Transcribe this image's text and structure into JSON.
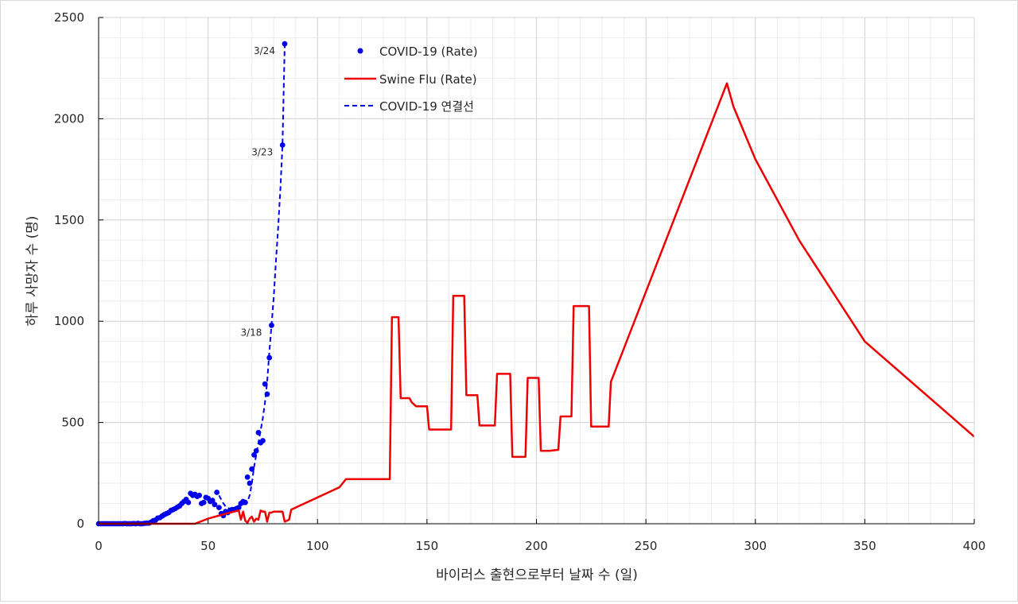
{
  "chart_data": {
    "type": "scatter",
    "title": "",
    "xlabel": "바이러스 출현으로부터 날짜 수 (일)",
    "ylabel": "하루 사망자 수 (명)",
    "xlim": [
      0,
      400
    ],
    "ylim": [
      0,
      2500
    ],
    "xticks": [
      0,
      50,
      100,
      150,
      200,
      250,
      300,
      350,
      400
    ],
    "yticks": [
      0,
      500,
      1000,
      1500,
      2000,
      2500
    ],
    "minor_x_step": 10,
    "minor_y_step": 100,
    "grid": true,
    "legend_position": "top-center",
    "colors": {
      "covid": "#0000ee",
      "swine": "#ee0000",
      "grid_major": "#d4d4d4",
      "grid_minor": "#ededed",
      "axis": "#000000"
    },
    "series": [
      {
        "name": "COVID-19 (Rate)",
        "kind": "points",
        "color": "#0000ee",
        "x": [
          0,
          1,
          2,
          3,
          4,
          5,
          6,
          7,
          8,
          9,
          10,
          11,
          12,
          13,
          14,
          15,
          16,
          17,
          18,
          19,
          20,
          21,
          22,
          23,
          24,
          25,
          26,
          27,
          28,
          29,
          30,
          31,
          32,
          33,
          34,
          35,
          36,
          37,
          38,
          39,
          40,
          41,
          42,
          43,
          44,
          45,
          46,
          47,
          48,
          49,
          50,
          51,
          52,
          53,
          54,
          55,
          56,
          57,
          58,
          59,
          60,
          61,
          62,
          63,
          64,
          65,
          66,
          67,
          68,
          69,
          70,
          71,
          72,
          73,
          74,
          75,
          76,
          77,
          78,
          79,
          84,
          85
        ],
        "y": [
          0,
          0,
          0,
          0,
          0,
          0,
          0,
          0,
          0,
          0,
          0,
          0,
          1,
          0,
          0,
          0,
          1,
          0,
          2,
          0,
          0,
          2,
          3,
          3,
          8,
          15,
          18,
          28,
          30,
          38,
          45,
          50,
          55,
          65,
          70,
          75,
          82,
          88,
          100,
          110,
          120,
          105,
          150,
          140,
          145,
          135,
          140,
          100,
          105,
          130,
          125,
          110,
          115,
          95,
          155,
          80,
          50,
          40,
          60,
          55,
          65,
          70,
          70,
          75,
          80,
          100,
          110,
          105,
          230,
          200,
          270,
          340,
          360,
          450,
          400,
          410,
          690,
          640,
          820,
          980,
          1870,
          2370
        ]
      },
      {
        "name": "Swine Flu (Rate)",
        "kind": "line",
        "color": "#ee0000",
        "x": [
          0,
          40,
          44,
          50,
          60,
          64,
          65,
          66,
          67,
          68,
          69,
          70,
          71,
          72,
          73,
          74,
          75,
          76,
          77,
          78,
          79,
          80,
          84,
          85,
          86,
          87,
          88,
          100,
          110,
          113,
          115,
          120,
          125,
          130,
          133,
          134,
          137,
          138,
          142,
          143,
          145,
          150,
          151,
          155,
          161,
          162,
          167,
          168,
          173,
          174,
          181,
          182,
          188,
          189,
          195,
          196,
          201,
          202,
          206,
          210,
          211,
          216,
          217,
          224,
          225,
          233,
          234,
          287,
          290,
          300,
          320,
          350,
          400
        ],
        "y": [
          0,
          0,
          0,
          25,
          55,
          65,
          20,
          60,
          15,
          5,
          25,
          35,
          10,
          25,
          20,
          65,
          60,
          60,
          10,
          55,
          55,
          60,
          60,
          10,
          15,
          20,
          70,
          130,
          180,
          220,
          220,
          220,
          220,
          220,
          220,
          1020,
          1020,
          620,
          620,
          600,
          580,
          580,
          465,
          465,
          465,
          1125,
          1125,
          635,
          635,
          485,
          485,
          740,
          740,
          330,
          330,
          720,
          720,
          360,
          360,
          365,
          530,
          530,
          1075,
          1075,
          480,
          480,
          700,
          2175,
          2060,
          1800,
          1400,
          900,
          430
        ]
      },
      {
        "name": "COVID-19 연결선",
        "kind": "dashed-line",
        "color": "#0000ee",
        "x": [
          55,
          56,
          57,
          58,
          59,
          60,
          61,
          62,
          63,
          64,
          65,
          66,
          67,
          68,
          69,
          70,
          71,
          72,
          73,
          74,
          75,
          76,
          77,
          78,
          79,
          80,
          81,
          82,
          83,
          84,
          85
        ],
        "y": [
          140,
          120,
          100,
          85,
          78,
          75,
          77,
          80,
          83,
          87,
          90,
          95,
          100,
          110,
          140,
          200,
          280,
          340,
          400,
          460,
          520,
          600,
          700,
          850,
          980,
          1120,
          1300,
          1460,
          1650,
          1870,
          2370
        ]
      }
    ],
    "annotations": [
      {
        "text": "3/24",
        "x": 85,
        "y": 2370
      },
      {
        "text": "3/23",
        "x": 84,
        "y": 1870
      },
      {
        "text": "3/18",
        "x": 79,
        "y": 980
      }
    ]
  }
}
